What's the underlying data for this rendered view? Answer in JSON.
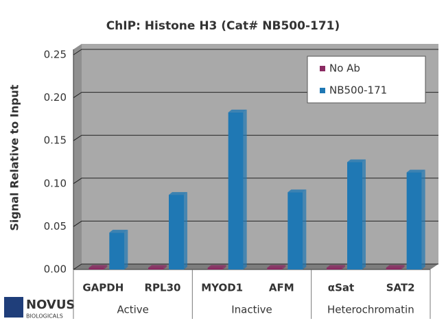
{
  "chart_data": {
    "type": "bar",
    "title": "ChIP: Histone H3 (Cat# NB500-171)",
    "y_label": "Signal Relative to Input",
    "categories": [
      "GAPDH",
      "RPL30",
      "MYOD1",
      "AFM",
      "αSat",
      "SAT2"
    ],
    "groups": [
      "Active",
      "Inactive",
      "Heterochromatin"
    ],
    "series": [
      {
        "name": "No Ab",
        "color": "#8a2a62",
        "values": [
          0.002,
          0.002,
          0.002,
          0.002,
          0.002,
          0.002
        ]
      },
      {
        "name": "NB500-171",
        "color": "#1f78b4",
        "values": [
          0.043,
          0.087,
          0.183,
          0.09,
          0.125,
          0.113
        ]
      }
    ],
    "ylim": [
      0,
      0.25
    ],
    "yticks": [
      {
        "value": 0,
        "label": "0.00"
      },
      0.05,
      {
        "value": 0.1,
        "label": "0.10"
      },
      0.15,
      {
        "value": 0.2,
        "label": "0.20"
      },
      0.25
    ],
    "grid": true,
    "legend": "top-right",
    "logo": {
      "name": "NOVUS",
      "sub": "BIOLOGICALS"
    }
  }
}
